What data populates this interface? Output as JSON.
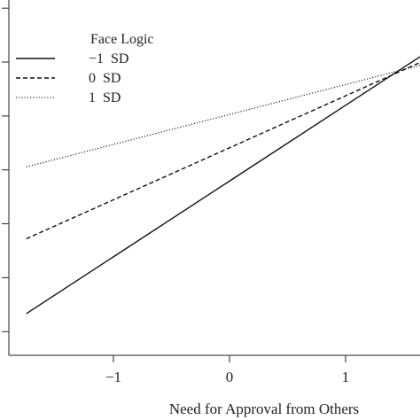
{
  "chart_data": {
    "type": "line",
    "title": "",
    "xlabel": "Need for Approval from Others",
    "ylabel": "",
    "x_ticks": [
      -1,
      0,
      1
    ],
    "x_tick_labels": [
      "−1",
      "0",
      "1"
    ],
    "xlim": [
      -1.9,
      1.65
    ],
    "ylim": [
      0,
      1
    ],
    "y_ticks": [
      0.02,
      0.2,
      0.38,
      0.56,
      0.74,
      0.92,
      1.1
    ],
    "grid": false,
    "legend": {
      "title": "Face Logic",
      "position": "top-left"
    },
    "series": [
      {
        "name": "−1  SD",
        "style": "solid",
        "color": "#111111",
        "x": [
          -1.75,
          1.65
        ],
        "y": [
          0.08,
          0.94
        ]
      },
      {
        "name": "0  SD",
        "style": "dashed",
        "color": "#111111",
        "x": [
          -1.75,
          1.65
        ],
        "y": [
          0.33,
          0.92
        ]
      },
      {
        "name": "1  SD",
        "style": "dotted",
        "color": "#111111",
        "x": [
          -1.75,
          1.65
        ],
        "y": [
          0.57,
          0.91
        ]
      }
    ]
  }
}
